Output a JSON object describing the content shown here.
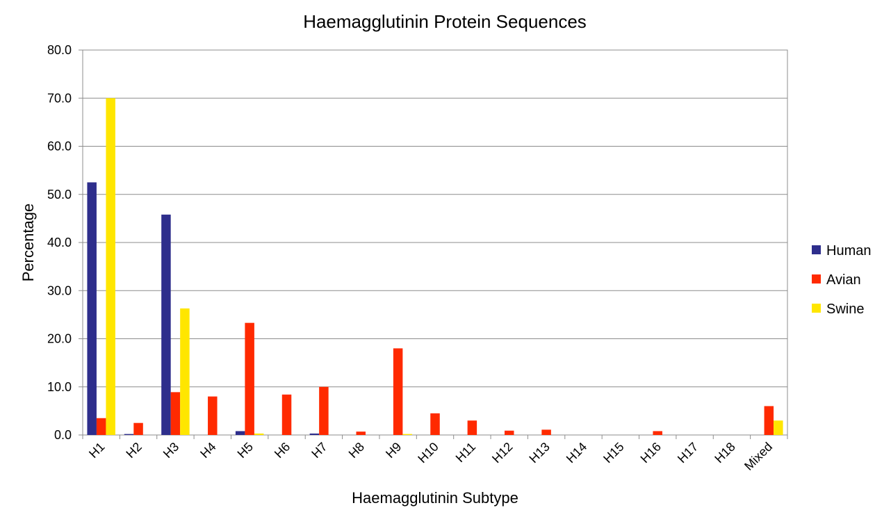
{
  "chart_data": {
    "type": "bar",
    "title": "Haemagglutinin Protein Sequences",
    "xlabel": "Haemagglutinin Subtype",
    "ylabel": "Percentage",
    "ylim": [
      0,
      80
    ],
    "yticks": [
      "0.0",
      "10.0",
      "20.0",
      "30.0",
      "40.0",
      "50.0",
      "60.0",
      "70.0",
      "80.0"
    ],
    "grid": true,
    "legend_position": "right",
    "categories": [
      "H1",
      "H2",
      "H3",
      "H4",
      "H5",
      "H6",
      "H7",
      "H8",
      "H9",
      "H10",
      "H11",
      "H12",
      "H13",
      "H14",
      "H15",
      "H16",
      "H17",
      "H18",
      "Mixed"
    ],
    "series": [
      {
        "name": "Human",
        "color": "#2E2E8C",
        "values": [
          52.5,
          0.2,
          45.8,
          0,
          0.8,
          0,
          0.3,
          0,
          0,
          0,
          0,
          0,
          0,
          0,
          0,
          0,
          0,
          0,
          0
        ]
      },
      {
        "name": "Avian",
        "color": "#FF2A00",
        "values": [
          3.5,
          2.5,
          8.9,
          8.0,
          23.3,
          8.4,
          10.0,
          0.7,
          18.0,
          4.5,
          3.0,
          0.9,
          1.1,
          0,
          0,
          0.8,
          0,
          0,
          6.0
        ]
      },
      {
        "name": "Swine",
        "color": "#FFE600",
        "values": [
          70.0,
          0,
          26.3,
          0,
          0.3,
          0,
          0,
          0,
          0.2,
          0,
          0,
          0,
          0,
          0,
          0,
          0,
          0,
          0,
          3.0
        ]
      }
    ]
  }
}
